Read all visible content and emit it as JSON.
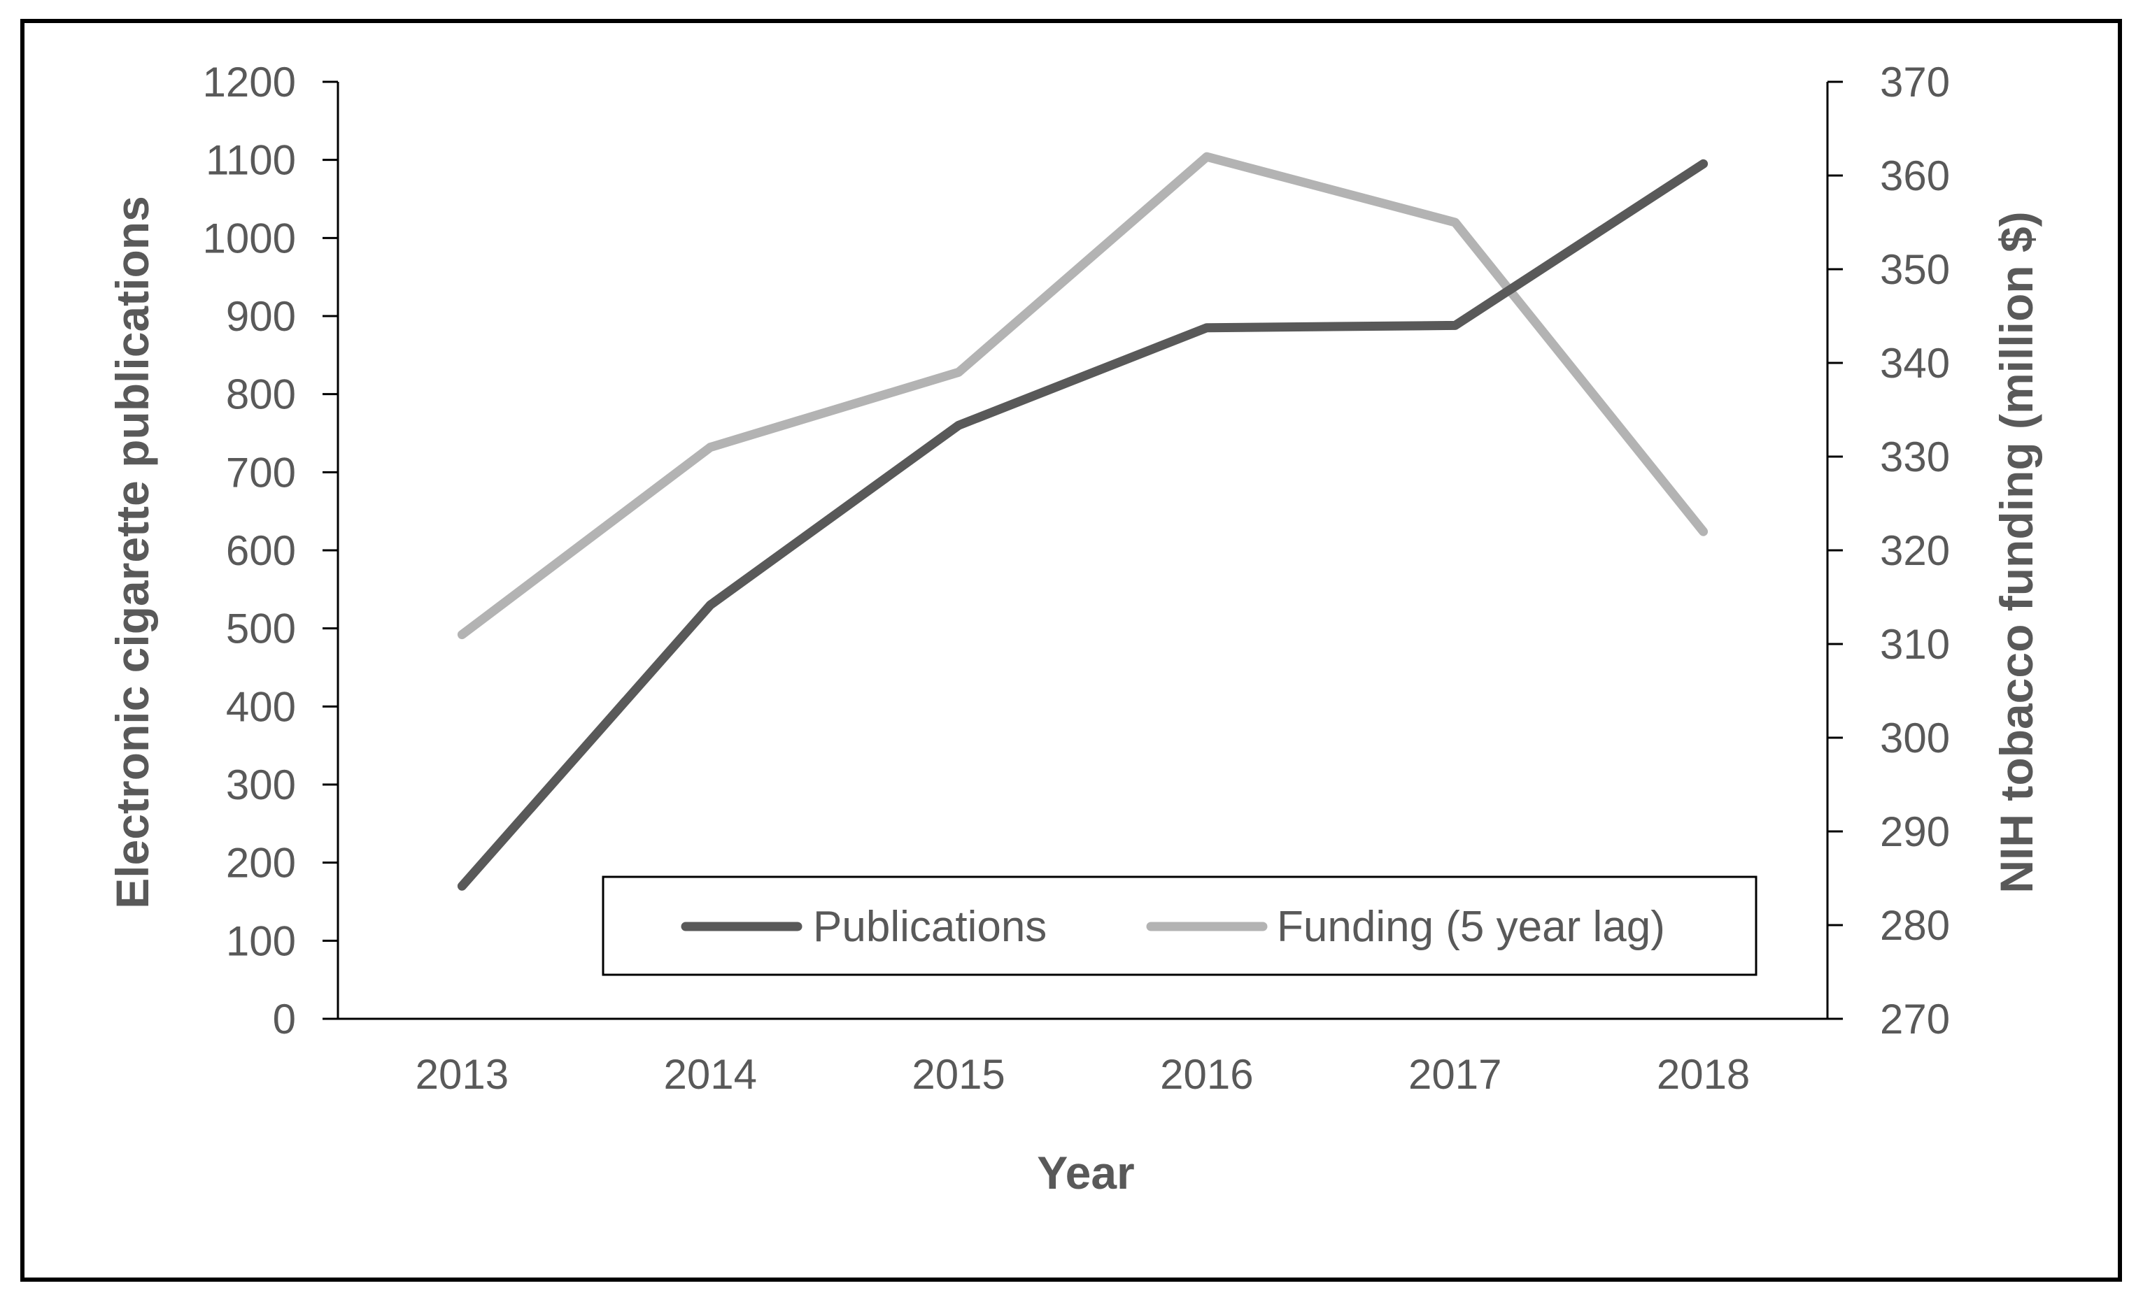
{
  "chart_data": {
    "type": "line",
    "title": "",
    "xlabel": "Year",
    "ylabel": "Electronic cigarette publications",
    "y2label": "NIH tobacco funding (million $)",
    "categories": [
      "2013",
      "2014",
      "2015",
      "2016",
      "2017",
      "2018"
    ],
    "ylim": [
      0,
      1200
    ],
    "y2lim": [
      270,
      370
    ],
    "yticks": [
      "0",
      "100",
      "200",
      "300",
      "400",
      "500",
      "600",
      "700",
      "800",
      "900",
      "1000",
      "1100",
      "1200"
    ],
    "y2ticks": [
      "270",
      "280",
      "290",
      "300",
      "310",
      "320",
      "330",
      "340",
      "350",
      "360",
      "370"
    ],
    "grid": false,
    "legend_position": "bottom-right inside plot",
    "series": [
      {
        "name": "Publications",
        "axis": "left",
        "color": "#595959",
        "values": [
          170,
          530,
          760,
          885,
          888,
          1095
        ]
      },
      {
        "name": "Funding (5 year lag)",
        "axis": "right",
        "color": "#b3b3b3",
        "values": [
          311,
          331,
          339,
          362,
          355,
          322
        ]
      }
    ]
  }
}
